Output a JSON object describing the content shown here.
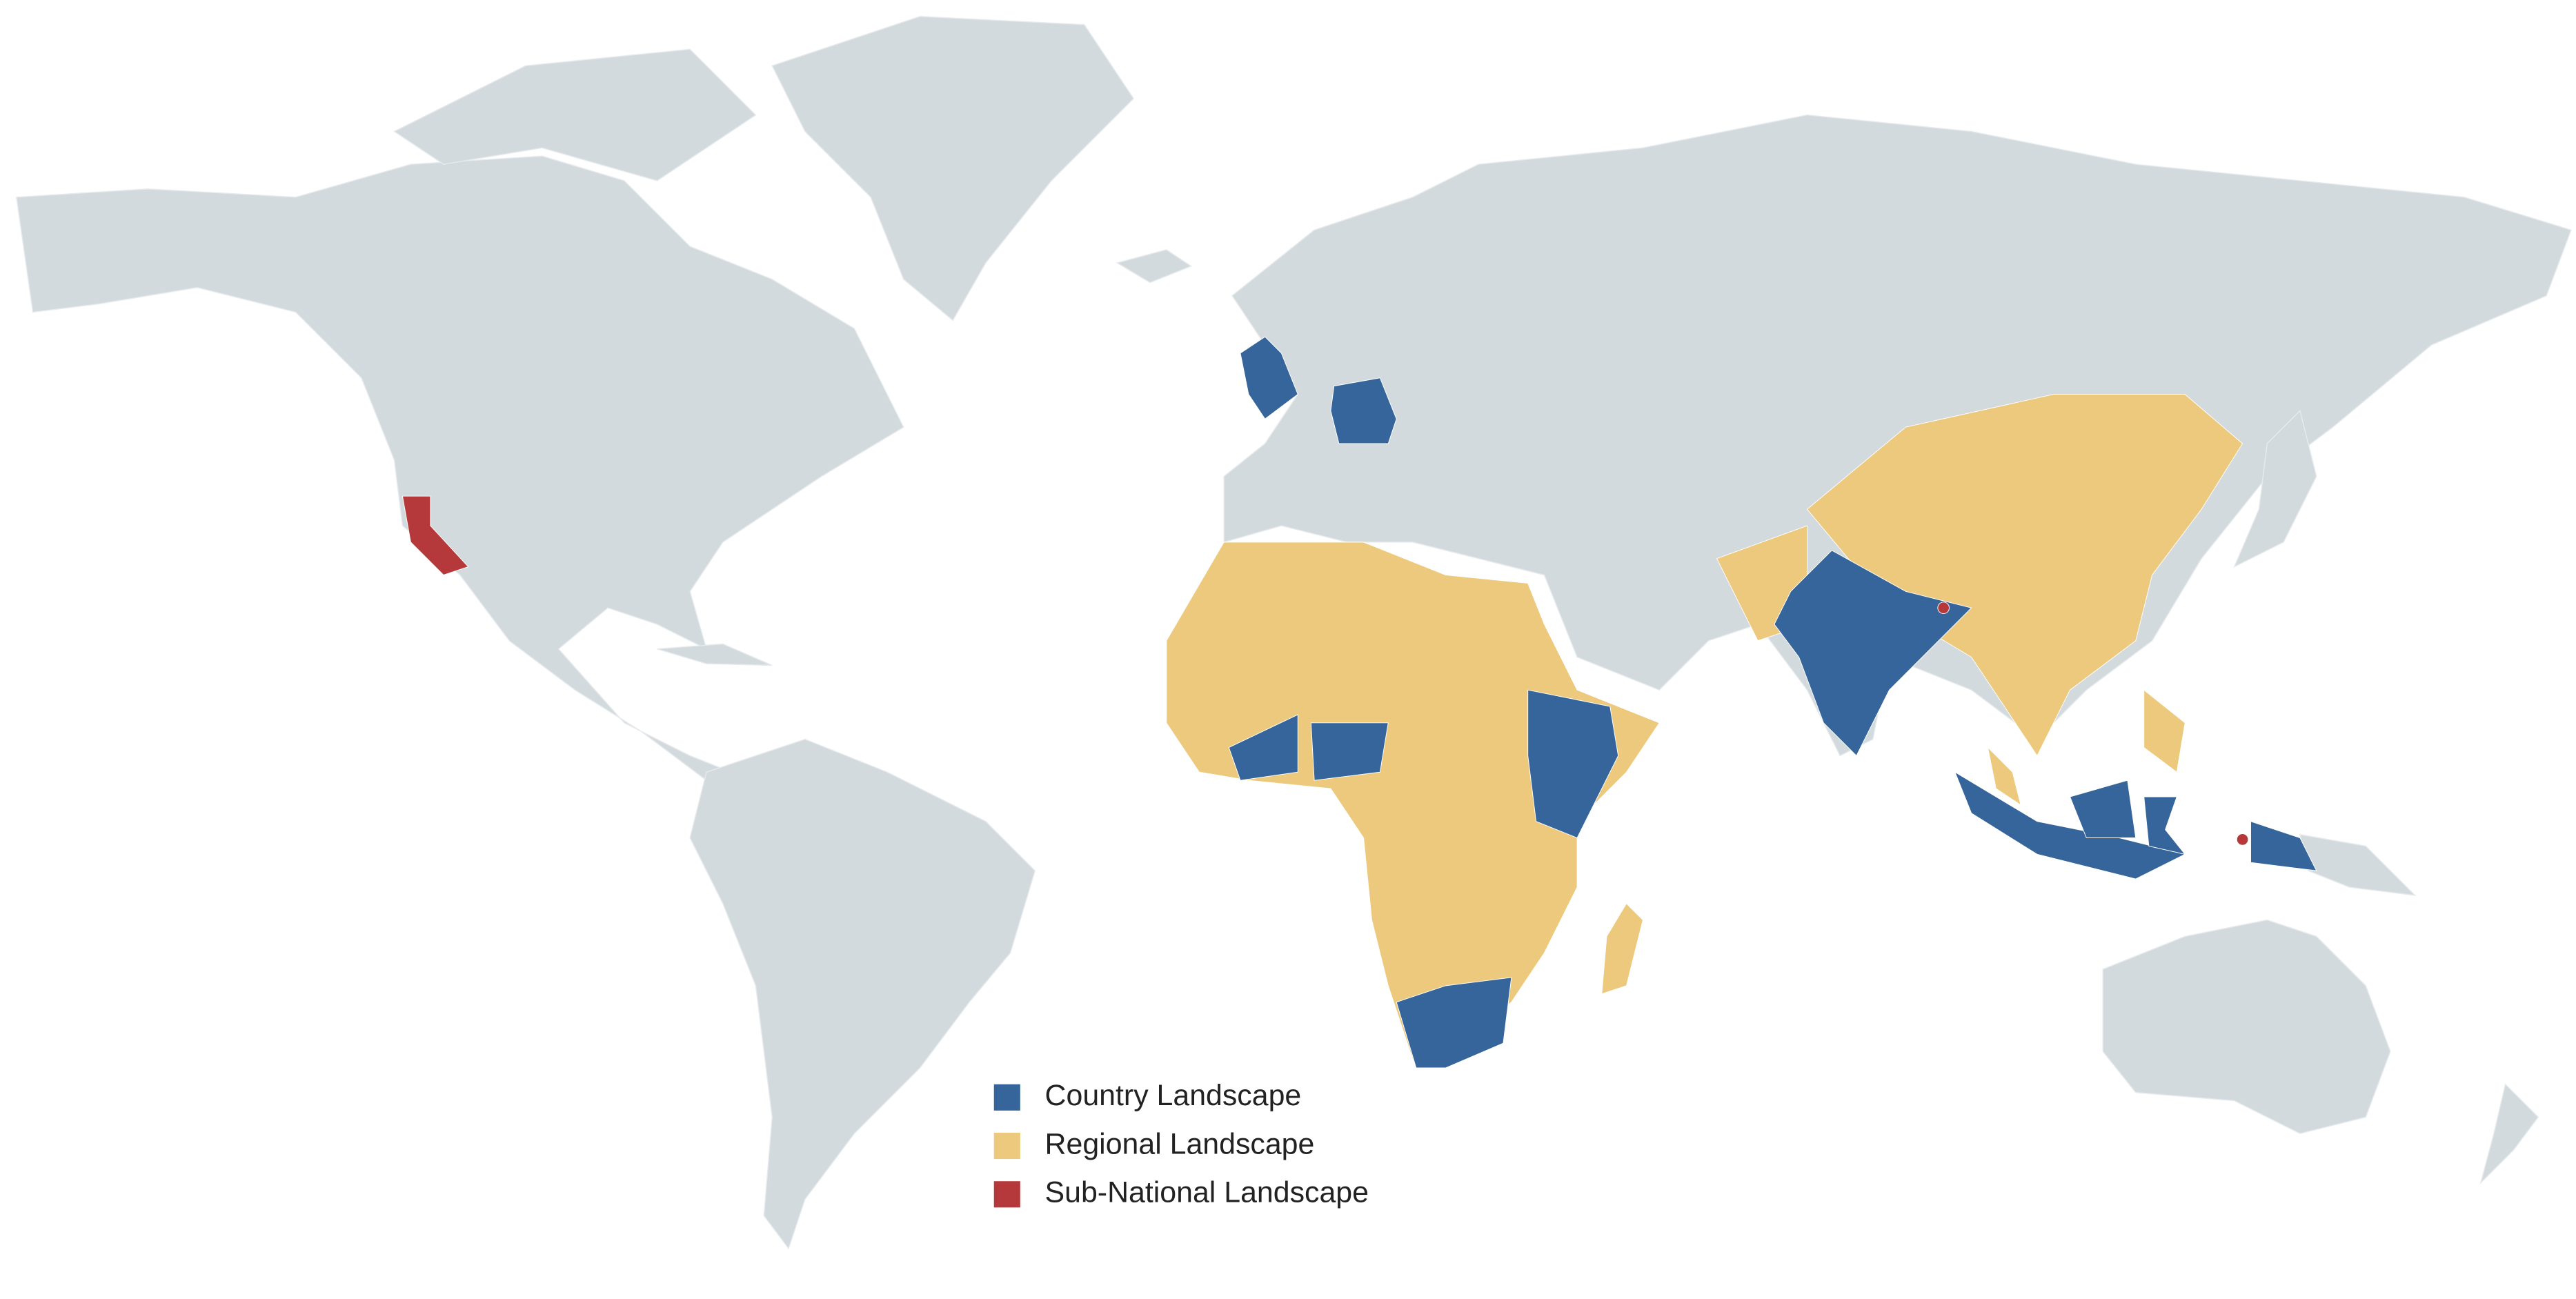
{
  "legend": {
    "items": [
      {
        "label": "Country Landscape",
        "color": "#35659a"
      },
      {
        "label": "Regional Landscape",
        "color": "#ecc97c"
      },
      {
        "label": "Sub-National Landscape",
        "color": "#b5393a"
      }
    ]
  }
}
